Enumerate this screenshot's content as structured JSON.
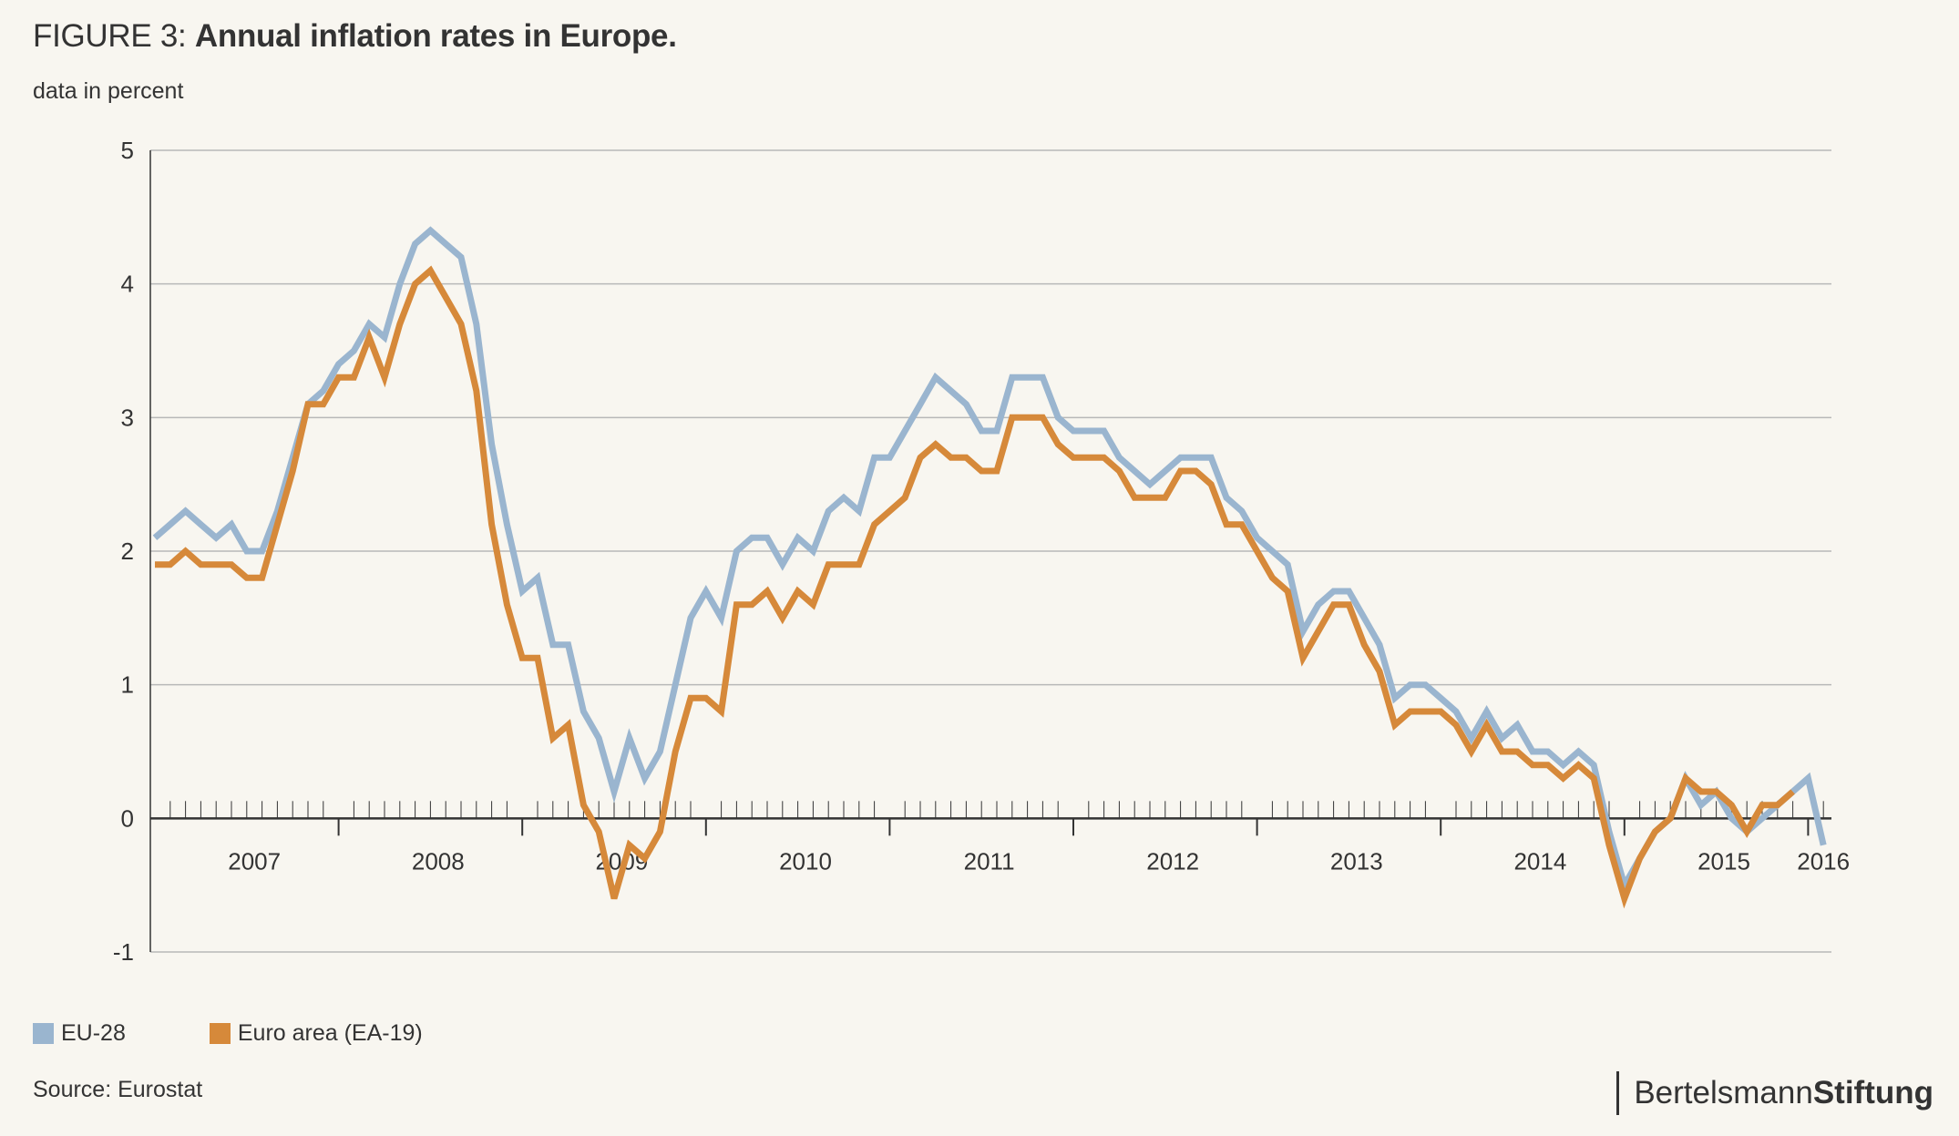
{
  "header": {
    "figure_label": "FIGURE 3:",
    "title": "Annual inflation rates in Europe.",
    "subtitle": "data in percent"
  },
  "footer": {
    "source": "Source: Eurostat",
    "brand_regular": "Bertelsmann",
    "brand_bold": "Stiftung"
  },
  "colors": {
    "eu28": "#9ab5cf",
    "ea19": "#d6893a",
    "grid": "#b8b8b8",
    "axis": "#333333",
    "text": "#333333",
    "background": "#f8f6f0"
  },
  "chart_data": {
    "type": "line",
    "title": "Annual inflation rates in Europe.",
    "ylabel": "data in percent",
    "ylim": [
      -1,
      5
    ],
    "yticks": [
      -1,
      0,
      1,
      2,
      3,
      4,
      5
    ],
    "ytick_labels": [
      "-1",
      "0",
      "1",
      "2",
      "3",
      "4",
      "5"
    ],
    "x_start": "2006-12",
    "x_end": "2016-01",
    "x_frequency": "monthly",
    "year_labels": [
      "2007",
      "2008",
      "2009",
      "2010",
      "2011",
      "2012",
      "2013",
      "2014",
      "2015",
      "2016"
    ],
    "grid": "horizontal",
    "legend_position": "bottom-left",
    "series": [
      {
        "name": "EU-28",
        "color_key": "eu28",
        "values": [
          2.1,
          2.2,
          2.3,
          2.2,
          2.1,
          2.2,
          2.0,
          2.0,
          2.3,
          2.7,
          3.1,
          3.2,
          3.4,
          3.5,
          3.7,
          3.6,
          4.0,
          4.3,
          4.4,
          4.3,
          4.2,
          3.7,
          2.8,
          2.2,
          1.7,
          1.8,
          1.3,
          1.3,
          0.8,
          0.6,
          0.2,
          0.6,
          0.3,
          0.5,
          1.0,
          1.5,
          1.7,
          1.5,
          2.0,
          2.1,
          2.1,
          1.9,
          2.1,
          2.0,
          2.3,
          2.4,
          2.3,
          2.7,
          2.7,
          2.9,
          3.1,
          3.3,
          3.2,
          3.1,
          2.9,
          2.9,
          3.3,
          3.3,
          3.3,
          3.0,
          2.9,
          2.9,
          2.9,
          2.7,
          2.6,
          2.5,
          2.6,
          2.7,
          2.7,
          2.7,
          2.4,
          2.3,
          2.1,
          2.0,
          1.9,
          1.4,
          1.6,
          1.7,
          1.7,
          1.5,
          1.3,
          0.9,
          1.0,
          1.0,
          0.9,
          0.8,
          0.6,
          0.8,
          0.6,
          0.7,
          0.5,
          0.5,
          0.4,
          0.5,
          0.4,
          -0.1,
          -0.5,
          -0.3,
          -0.1,
          0.0,
          0.3,
          0.1,
          0.2,
          0.0,
          -0.1,
          0.0,
          0.1,
          0.2,
          0.3,
          -0.2
        ]
      },
      {
        "name": "Euro area (EA-19)",
        "color_key": "ea19",
        "values": [
          1.9,
          1.9,
          2.0,
          1.9,
          1.9,
          1.9,
          1.8,
          1.8,
          2.2,
          2.6,
          3.1,
          3.1,
          3.3,
          3.3,
          3.6,
          3.3,
          3.7,
          4.0,
          4.1,
          3.9,
          3.7,
          3.2,
          2.2,
          1.6,
          1.2,
          1.2,
          0.6,
          0.7,
          0.1,
          -0.1,
          -0.6,
          -0.2,
          -0.3,
          -0.1,
          0.5,
          0.9,
          0.9,
          0.8,
          1.6,
          1.6,
          1.7,
          1.5,
          1.7,
          1.6,
          1.9,
          1.9,
          1.9,
          2.2,
          2.3,
          2.4,
          2.7,
          2.8,
          2.7,
          2.7,
          2.6,
          2.6,
          3.0,
          3.0,
          3.0,
          2.8,
          2.7,
          2.7,
          2.7,
          2.6,
          2.4,
          2.4,
          2.4,
          2.6,
          2.6,
          2.5,
          2.2,
          2.2,
          2.0,
          1.8,
          1.7,
          1.2,
          1.4,
          1.6,
          1.6,
          1.3,
          1.1,
          0.7,
          0.8,
          0.8,
          0.8,
          0.7,
          0.5,
          0.7,
          0.5,
          0.5,
          0.4,
          0.4,
          0.3,
          0.4,
          0.3,
          -0.2,
          -0.6,
          -0.3,
          -0.1,
          0.0,
          0.3,
          0.2,
          0.2,
          0.1,
          -0.1,
          0.1,
          0.1,
          0.2,
          null,
          null
        ]
      }
    ]
  }
}
